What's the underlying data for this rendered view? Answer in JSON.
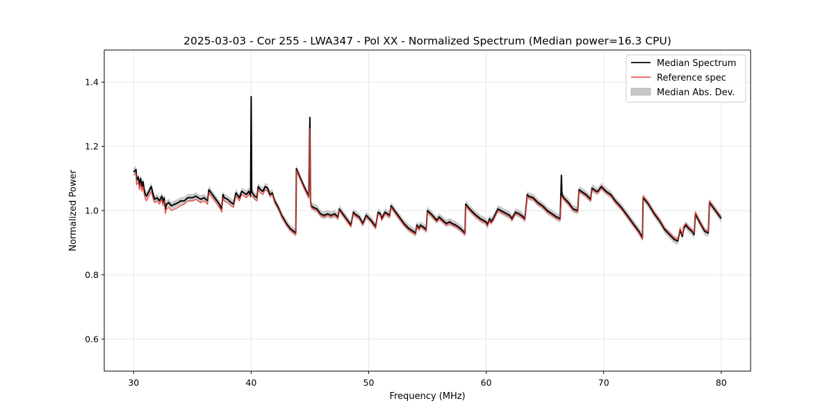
{
  "chart_data": {
    "type": "line",
    "title": "2025-03-03 - Cor 255 - LWA347 - Pol XX - Normalized Spectrum (Median power=16.3 CPU)",
    "xlabel": "Frequency (MHz)",
    "ylabel": "Normalized Power",
    "xlim": [
      27.5,
      82.5
    ],
    "ylim": [
      0.5,
      1.5
    ],
    "xticks": [
      30,
      40,
      50,
      60,
      70,
      80
    ],
    "yticks": [
      0.6,
      0.8,
      1.0,
      1.2,
      1.4
    ],
    "grid": true,
    "legend_position": "top-right",
    "legend": [
      "Median Spectrum",
      "Reference spec",
      "Median Abs. Dev."
    ],
    "colors": {
      "median": "#000000",
      "reference": "#e8413a",
      "mad": "#bfbfbf",
      "grid": "#e6e6e6"
    },
    "series": [
      {
        "name": "Median Spectrum",
        "x": [
          30.0,
          30.2,
          30.25,
          30.4,
          30.5,
          30.6,
          30.7,
          30.8,
          30.9,
          31.0,
          31.1,
          31.3,
          31.5,
          31.7,
          31.8,
          32.0,
          32.2,
          32.4,
          32.5,
          32.6,
          32.7,
          32.8,
          33.0,
          33.2,
          33.5,
          33.8,
          34.0,
          34.3,
          34.6,
          35.0,
          35.3,
          35.7,
          36.0,
          36.3,
          36.4,
          36.5,
          36.7,
          36.9,
          37.1,
          37.3,
          37.5,
          37.6,
          37.7,
          38.0,
          38.3,
          38.5,
          38.7,
          38.9,
          39.0,
          39.2,
          39.4,
          39.6,
          39.8,
          39.95,
          40.0,
          40.05,
          40.1,
          40.3,
          40.5,
          40.6,
          40.8,
          41.0,
          41.2,
          41.4,
          41.6,
          41.8,
          42.0,
          42.3,
          42.6,
          43.0,
          43.3,
          43.8,
          43.85,
          44.2,
          44.5,
          44.9,
          45.0,
          45.05,
          45.1,
          45.3,
          45.6,
          45.9,
          46.2,
          46.5,
          46.8,
          47.1,
          47.4,
          47.5,
          47.8,
          48.1,
          48.5,
          48.7,
          48.8,
          49.2,
          49.5,
          49.8,
          50.2,
          50.6,
          50.8,
          51.0,
          51.1,
          51.4,
          51.6,
          51.8,
          51.9,
          52.2,
          52.6,
          53.0,
          53.4,
          53.8,
          54.0,
          54.1,
          54.3,
          54.4,
          54.6,
          54.8,
          54.9,
          55.0,
          55.3,
          55.8,
          56.0,
          56.3,
          56.6,
          56.9,
          57.1,
          57.4,
          57.8,
          58.2,
          58.25,
          58.6,
          59.0,
          59.5,
          60.0,
          60.1,
          60.3,
          60.4,
          60.6,
          61.0,
          61.5,
          62.0,
          62.2,
          62.5,
          62.8,
          63.0,
          63.3,
          63.5,
          63.6,
          64.0,
          64.4,
          64.8,
          65.2,
          65.6,
          66.0,
          66.3,
          66.4,
          66.45,
          66.6,
          67.0,
          67.4,
          67.8,
          67.9,
          68.5,
          68.9,
          69.0,
          69.4,
          69.5,
          69.8,
          70.2,
          70.6,
          71.0,
          71.5,
          72.0,
          72.5,
          73.0,
          73.3,
          73.35,
          73.8,
          74.3,
          74.8,
          75.2,
          75.6,
          76.0,
          76.3,
          76.5,
          76.7,
          76.8,
          77.0,
          77.2,
          77.5,
          77.7,
          77.8,
          78.0,
          78.3,
          78.6,
          78.9,
          79.0,
          79.3,
          79.6,
          80.0
        ],
        "y": [
          1.12,
          1.128,
          1.095,
          1.105,
          1.08,
          1.1,
          1.075,
          1.09,
          1.065,
          1.05,
          1.045,
          1.06,
          1.075,
          1.045,
          1.035,
          1.04,
          1.03,
          1.045,
          1.025,
          1.04,
          1.005,
          1.02,
          1.025,
          1.015,
          1.02,
          1.025,
          1.03,
          1.03,
          1.04,
          1.04,
          1.045,
          1.035,
          1.04,
          1.03,
          1.065,
          1.06,
          1.05,
          1.04,
          1.03,
          1.02,
          1.005,
          1.05,
          1.04,
          1.035,
          1.025,
          1.02,
          1.055,
          1.045,
          1.04,
          1.06,
          1.055,
          1.05,
          1.06,
          1.045,
          1.355,
          1.06,
          1.055,
          1.045,
          1.04,
          1.075,
          1.065,
          1.06,
          1.075,
          1.07,
          1.05,
          1.055,
          1.03,
          1.01,
          0.985,
          0.96,
          0.945,
          0.93,
          1.13,
          1.1,
          1.075,
          1.045,
          1.29,
          1.03,
          1.015,
          1.01,
          1.005,
          0.99,
          0.985,
          0.99,
          0.985,
          0.99,
          0.98,
          1.005,
          0.99,
          0.975,
          0.955,
          0.995,
          0.99,
          0.98,
          0.96,
          0.985,
          0.97,
          0.95,
          0.995,
          0.99,
          0.975,
          0.995,
          0.99,
          0.985,
          1.015,
          1.0,
          0.98,
          0.96,
          0.945,
          0.935,
          0.93,
          0.955,
          0.945,
          0.955,
          0.95,
          0.945,
          0.94,
          1.0,
          0.99,
          0.97,
          0.98,
          0.97,
          0.96,
          0.965,
          0.96,
          0.955,
          0.945,
          0.93,
          1.02,
          1.005,
          0.99,
          0.975,
          0.965,
          0.955,
          0.975,
          0.965,
          0.975,
          1.005,
          0.995,
          0.985,
          0.975,
          0.995,
          0.99,
          0.985,
          0.975,
          1.05,
          1.045,
          1.04,
          1.025,
          1.015,
          1.0,
          0.99,
          0.98,
          0.975,
          1.11,
          1.05,
          1.04,
          1.025,
          1.005,
          1.0,
          1.065,
          1.05,
          1.035,
          1.07,
          1.06,
          1.06,
          1.075,
          1.06,
          1.05,
          1.03,
          1.01,
          0.985,
          0.96,
          0.935,
          0.915,
          1.04,
          1.02,
          0.99,
          0.965,
          0.94,
          0.925,
          0.91,
          0.905,
          0.94,
          0.92,
          0.945,
          0.955,
          0.945,
          0.935,
          0.925,
          0.99,
          0.975,
          0.955,
          0.935,
          0.93,
          1.025,
          1.01,
          0.995,
          0.975
        ]
      },
      {
        "name": "Reference spec",
        "x": [
          30.0,
          30.2,
          30.25,
          30.4,
          30.5,
          30.6,
          30.7,
          30.8,
          30.9,
          31.0,
          31.1,
          31.3,
          31.5,
          31.7,
          31.8,
          32.0,
          32.2,
          32.4,
          32.5,
          32.6,
          32.7,
          32.8,
          33.0,
          33.2,
          33.5,
          33.8,
          34.0,
          34.3,
          34.6,
          35.0,
          35.3,
          35.7,
          36.0,
          36.3,
          36.4,
          36.5,
          36.7,
          36.9,
          37.1,
          37.3,
          37.5,
          37.6,
          37.7,
          38.0,
          38.3,
          38.5,
          38.7,
          38.9,
          39.0,
          39.2,
          39.4,
          39.6,
          39.8,
          40.1,
          40.3,
          40.5,
          40.6,
          40.8,
          41.0,
          41.2,
          41.4,
          41.6,
          41.8,
          42.0,
          42.3,
          42.6,
          43.0,
          43.3,
          43.8,
          43.85,
          44.2,
          44.5,
          44.9,
          45.0,
          45.05,
          45.1,
          45.3,
          45.6,
          45.9,
          46.2,
          46.5,
          46.8,
          47.1,
          47.4,
          47.5,
          47.8,
          48.1,
          48.5,
          48.7,
          48.8,
          49.2,
          49.5,
          49.8,
          50.2,
          50.6,
          50.8,
          51.0,
          51.1,
          51.4,
          51.6,
          51.8,
          51.9,
          52.2,
          52.6,
          53.0,
          53.4,
          53.8,
          54.0,
          54.1,
          54.3,
          54.4,
          54.6,
          54.8,
          54.9,
          55.0,
          55.3,
          55.8,
          56.0,
          56.3,
          56.6,
          56.9,
          57.1,
          57.4,
          57.8,
          58.2,
          58.25,
          58.6,
          59.0,
          59.5,
          60.0,
          60.1,
          60.3,
          60.4,
          60.6,
          61.0,
          61.5,
          62.0,
          62.2,
          62.5,
          62.8,
          63.0,
          63.3,
          63.5,
          63.6,
          64.0,
          64.4,
          64.8,
          65.2,
          65.6,
          66.0,
          66.3,
          66.4,
          66.6,
          67.0,
          67.4,
          67.8,
          67.9,
          68.5,
          68.9,
          69.0,
          69.4,
          69.5,
          69.8,
          70.2,
          70.6,
          71.0,
          71.5,
          72.0,
          72.5,
          73.0,
          73.3,
          73.35,
          73.8,
          74.3,
          74.8,
          75.2,
          75.6,
          76.0,
          76.3,
          76.5,
          76.7,
          76.8,
          77.0,
          77.2,
          77.5,
          77.7,
          77.8,
          78.0,
          78.3,
          78.6,
          78.9,
          79.0,
          79.3,
          79.6,
          80.0
        ],
        "y": [
          1.11,
          1.115,
          1.08,
          1.09,
          1.065,
          1.085,
          1.06,
          1.075,
          1.05,
          1.035,
          1.03,
          1.045,
          1.06,
          1.03,
          1.025,
          1.03,
          1.02,
          1.035,
          1.015,
          1.03,
          0.99,
          1.005,
          1.01,
          1.0,
          1.005,
          1.01,
          1.015,
          1.02,
          1.03,
          1.03,
          1.035,
          1.025,
          1.03,
          1.02,
          1.055,
          1.05,
          1.04,
          1.03,
          1.02,
          1.01,
          0.995,
          1.04,
          1.03,
          1.025,
          1.015,
          1.01,
          1.045,
          1.035,
          1.03,
          1.05,
          1.045,
          1.04,
          1.05,
          1.045,
          1.035,
          1.03,
          1.065,
          1.055,
          1.05,
          1.065,
          1.06,
          1.045,
          1.05,
          1.025,
          1.005,
          0.98,
          0.955,
          0.94,
          0.925,
          1.125,
          1.095,
          1.07,
          1.04,
          1.255,
          1.025,
          1.01,
          1.005,
          1.0,
          0.985,
          0.98,
          0.985,
          0.98,
          0.985,
          0.975,
          1.0,
          0.985,
          0.97,
          0.95,
          0.99,
          0.985,
          0.975,
          0.955,
          0.98,
          0.965,
          0.945,
          0.99,
          0.985,
          0.97,
          0.99,
          0.985,
          0.98,
          1.01,
          0.995,
          0.975,
          0.955,
          0.94,
          0.93,
          0.925,
          0.95,
          0.94,
          0.95,
          0.945,
          0.94,
          0.935,
          0.995,
          0.985,
          0.965,
          0.975,
          0.965,
          0.955,
          0.96,
          0.955,
          0.95,
          0.94,
          0.925,
          1.015,
          1.0,
          0.985,
          0.97,
          0.96,
          0.95,
          0.97,
          0.96,
          0.97,
          1.0,
          0.99,
          0.98,
          0.97,
          0.99,
          0.985,
          0.98,
          0.97,
          1.045,
          1.04,
          1.035,
          1.02,
          1.01,
          0.995,
          0.985,
          0.975,
          0.97,
          1.045,
          1.035,
          1.02,
          1.0,
          0.995,
          1.06,
          1.045,
          1.03,
          1.065,
          1.055,
          1.055,
          1.07,
          1.055,
          1.045,
          1.025,
          1.005,
          0.98,
          0.955,
          0.93,
          0.91,
          1.045,
          1.025,
          0.995,
          0.97,
          0.945,
          0.93,
          0.915,
          0.91,
          0.945,
          0.925,
          0.95,
          0.96,
          0.95,
          0.94,
          0.93,
          0.995,
          0.98,
          0.96,
          0.94,
          0.935,
          1.03,
          1.015,
          1.0,
          0.98
        ]
      }
    ],
    "mad_band_width": 0.012
  }
}
